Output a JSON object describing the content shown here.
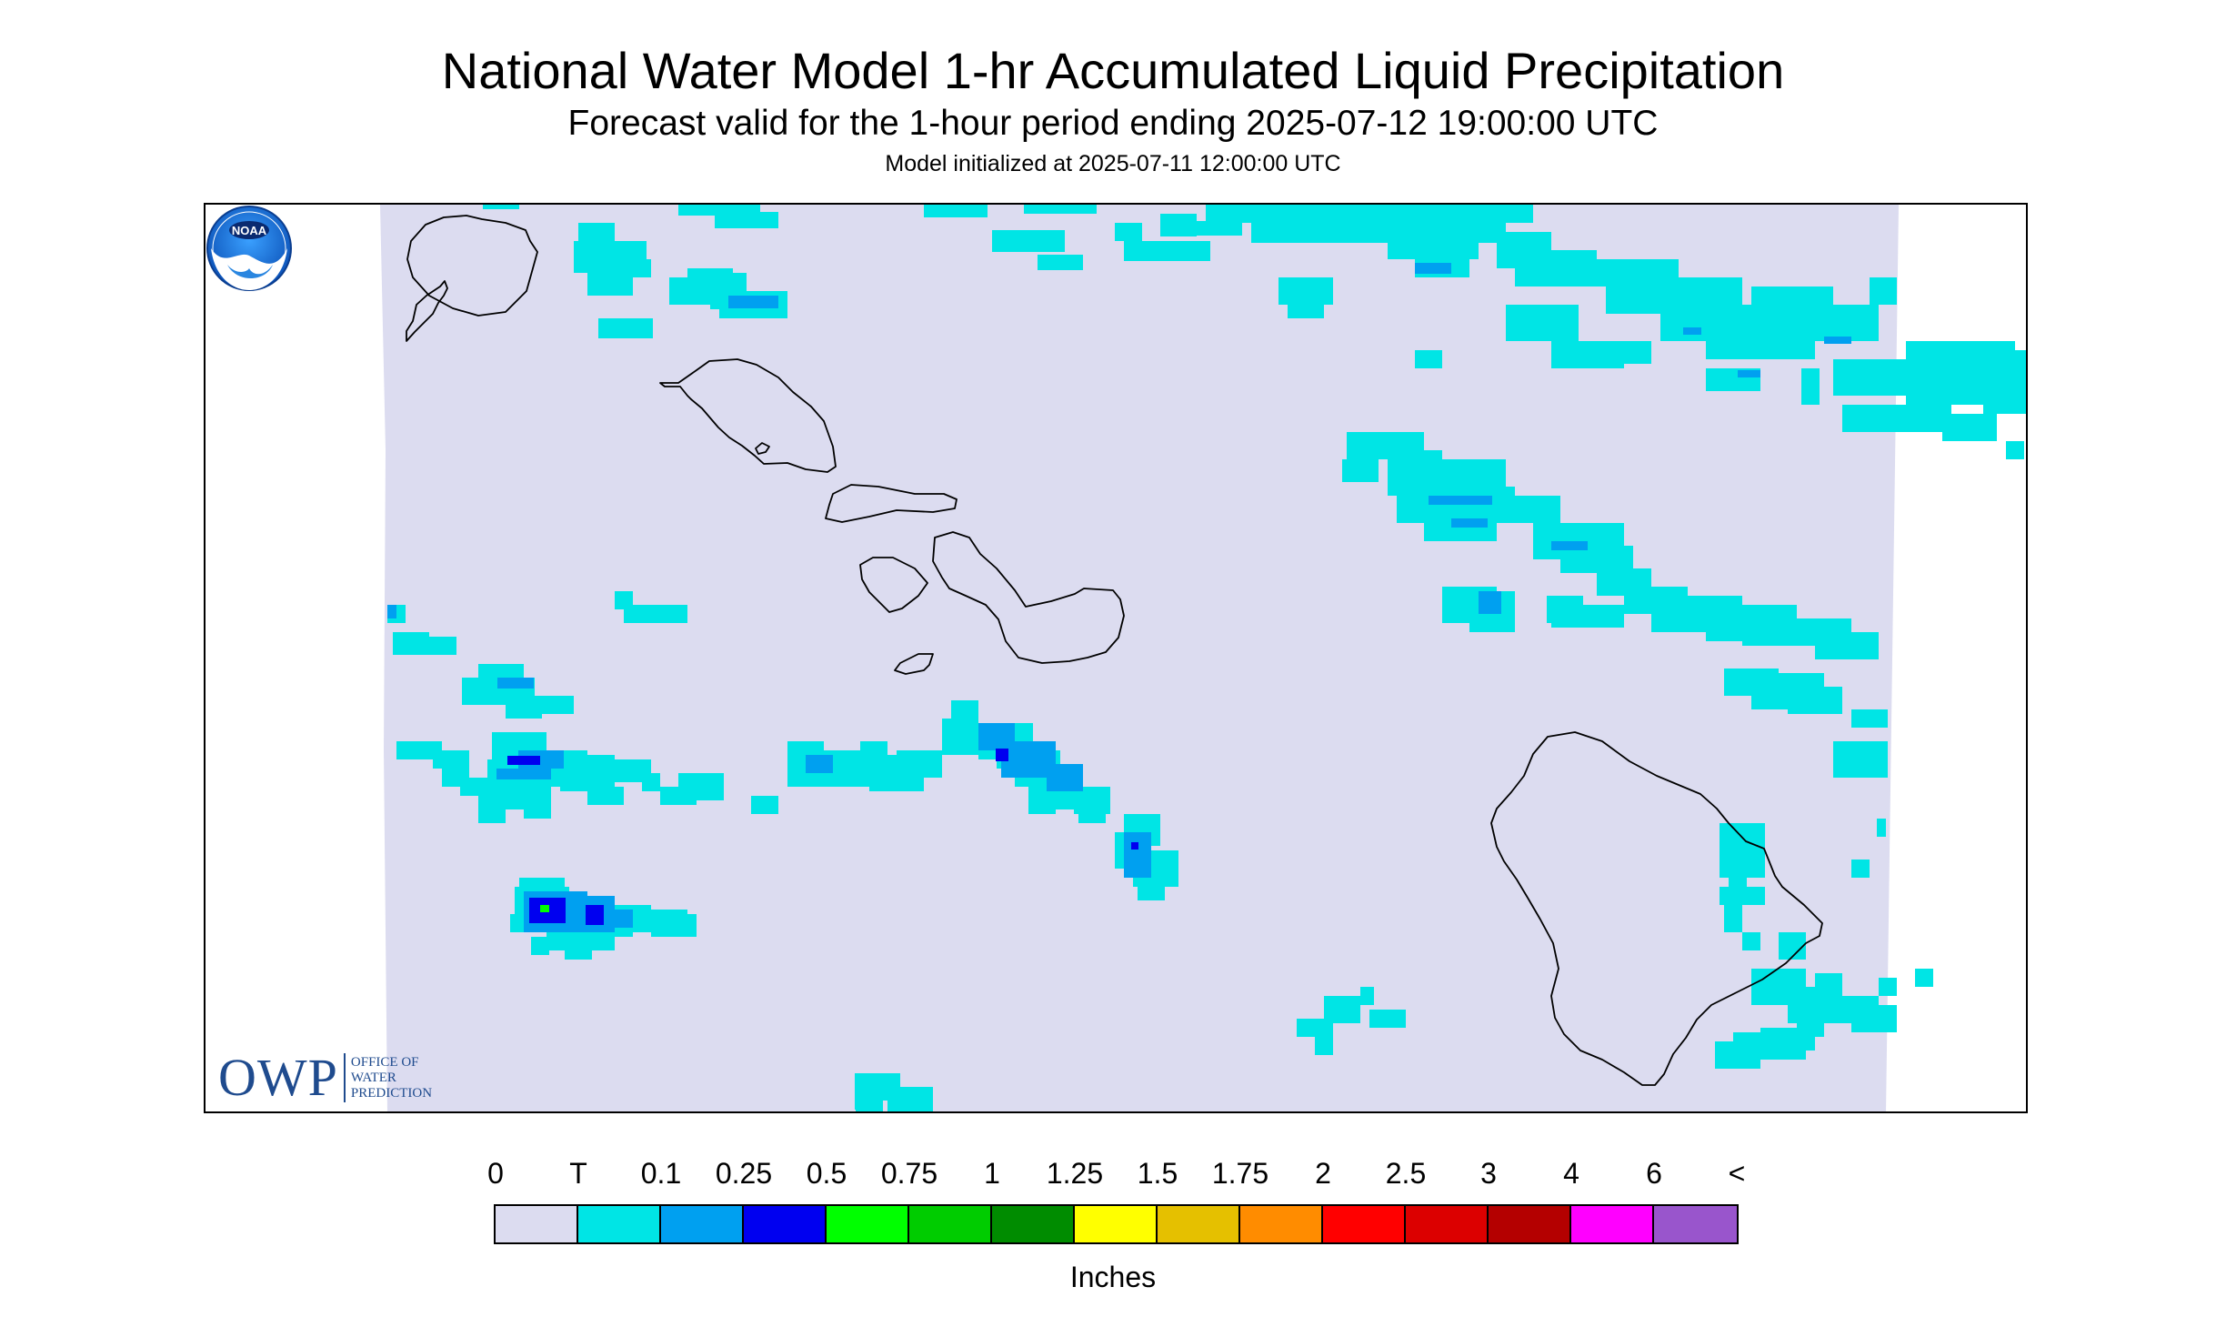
{
  "header": {
    "title": "National Water Model 1-hr Accumulated Liquid Precipitation",
    "subtitle": "Forecast valid for the 1-hour period ending 2025-07-12 19:00:00 UTC",
    "init": "Model initialized at 2025-07-11 12:00:00 UTC"
  },
  "logos": {
    "owp_letters": "OWP",
    "owp_name": [
      "OFFICE OF",
      "WATER",
      "PREDICTION"
    ],
    "noaa": "NOAA"
  },
  "map": {
    "region": "Hawaiian Islands",
    "background_color": "#ffffff",
    "domain_fill_color": "#dcdcf0",
    "coastline_color": "#000000"
  },
  "legend": {
    "labels": [
      "0",
      "T",
      "0.1",
      "0.25",
      "0.5",
      "0.75",
      "1",
      "1.25",
      "1.5",
      "1.75",
      "2",
      "2.5",
      "3",
      "4",
      "6",
      "<"
    ],
    "colors": [
      "#dcdcf0",
      "#00e5e5",
      "#00a0f0",
      "#0000f0",
      "#00ff00",
      "#00cc00",
      "#008c00",
      "#ffff00",
      "#e5c000",
      "#ff8c00",
      "#ff0000",
      "#dc0000",
      "#b40000",
      "#ff00ff",
      "#9955cc"
    ],
    "units": "Inches"
  }
}
